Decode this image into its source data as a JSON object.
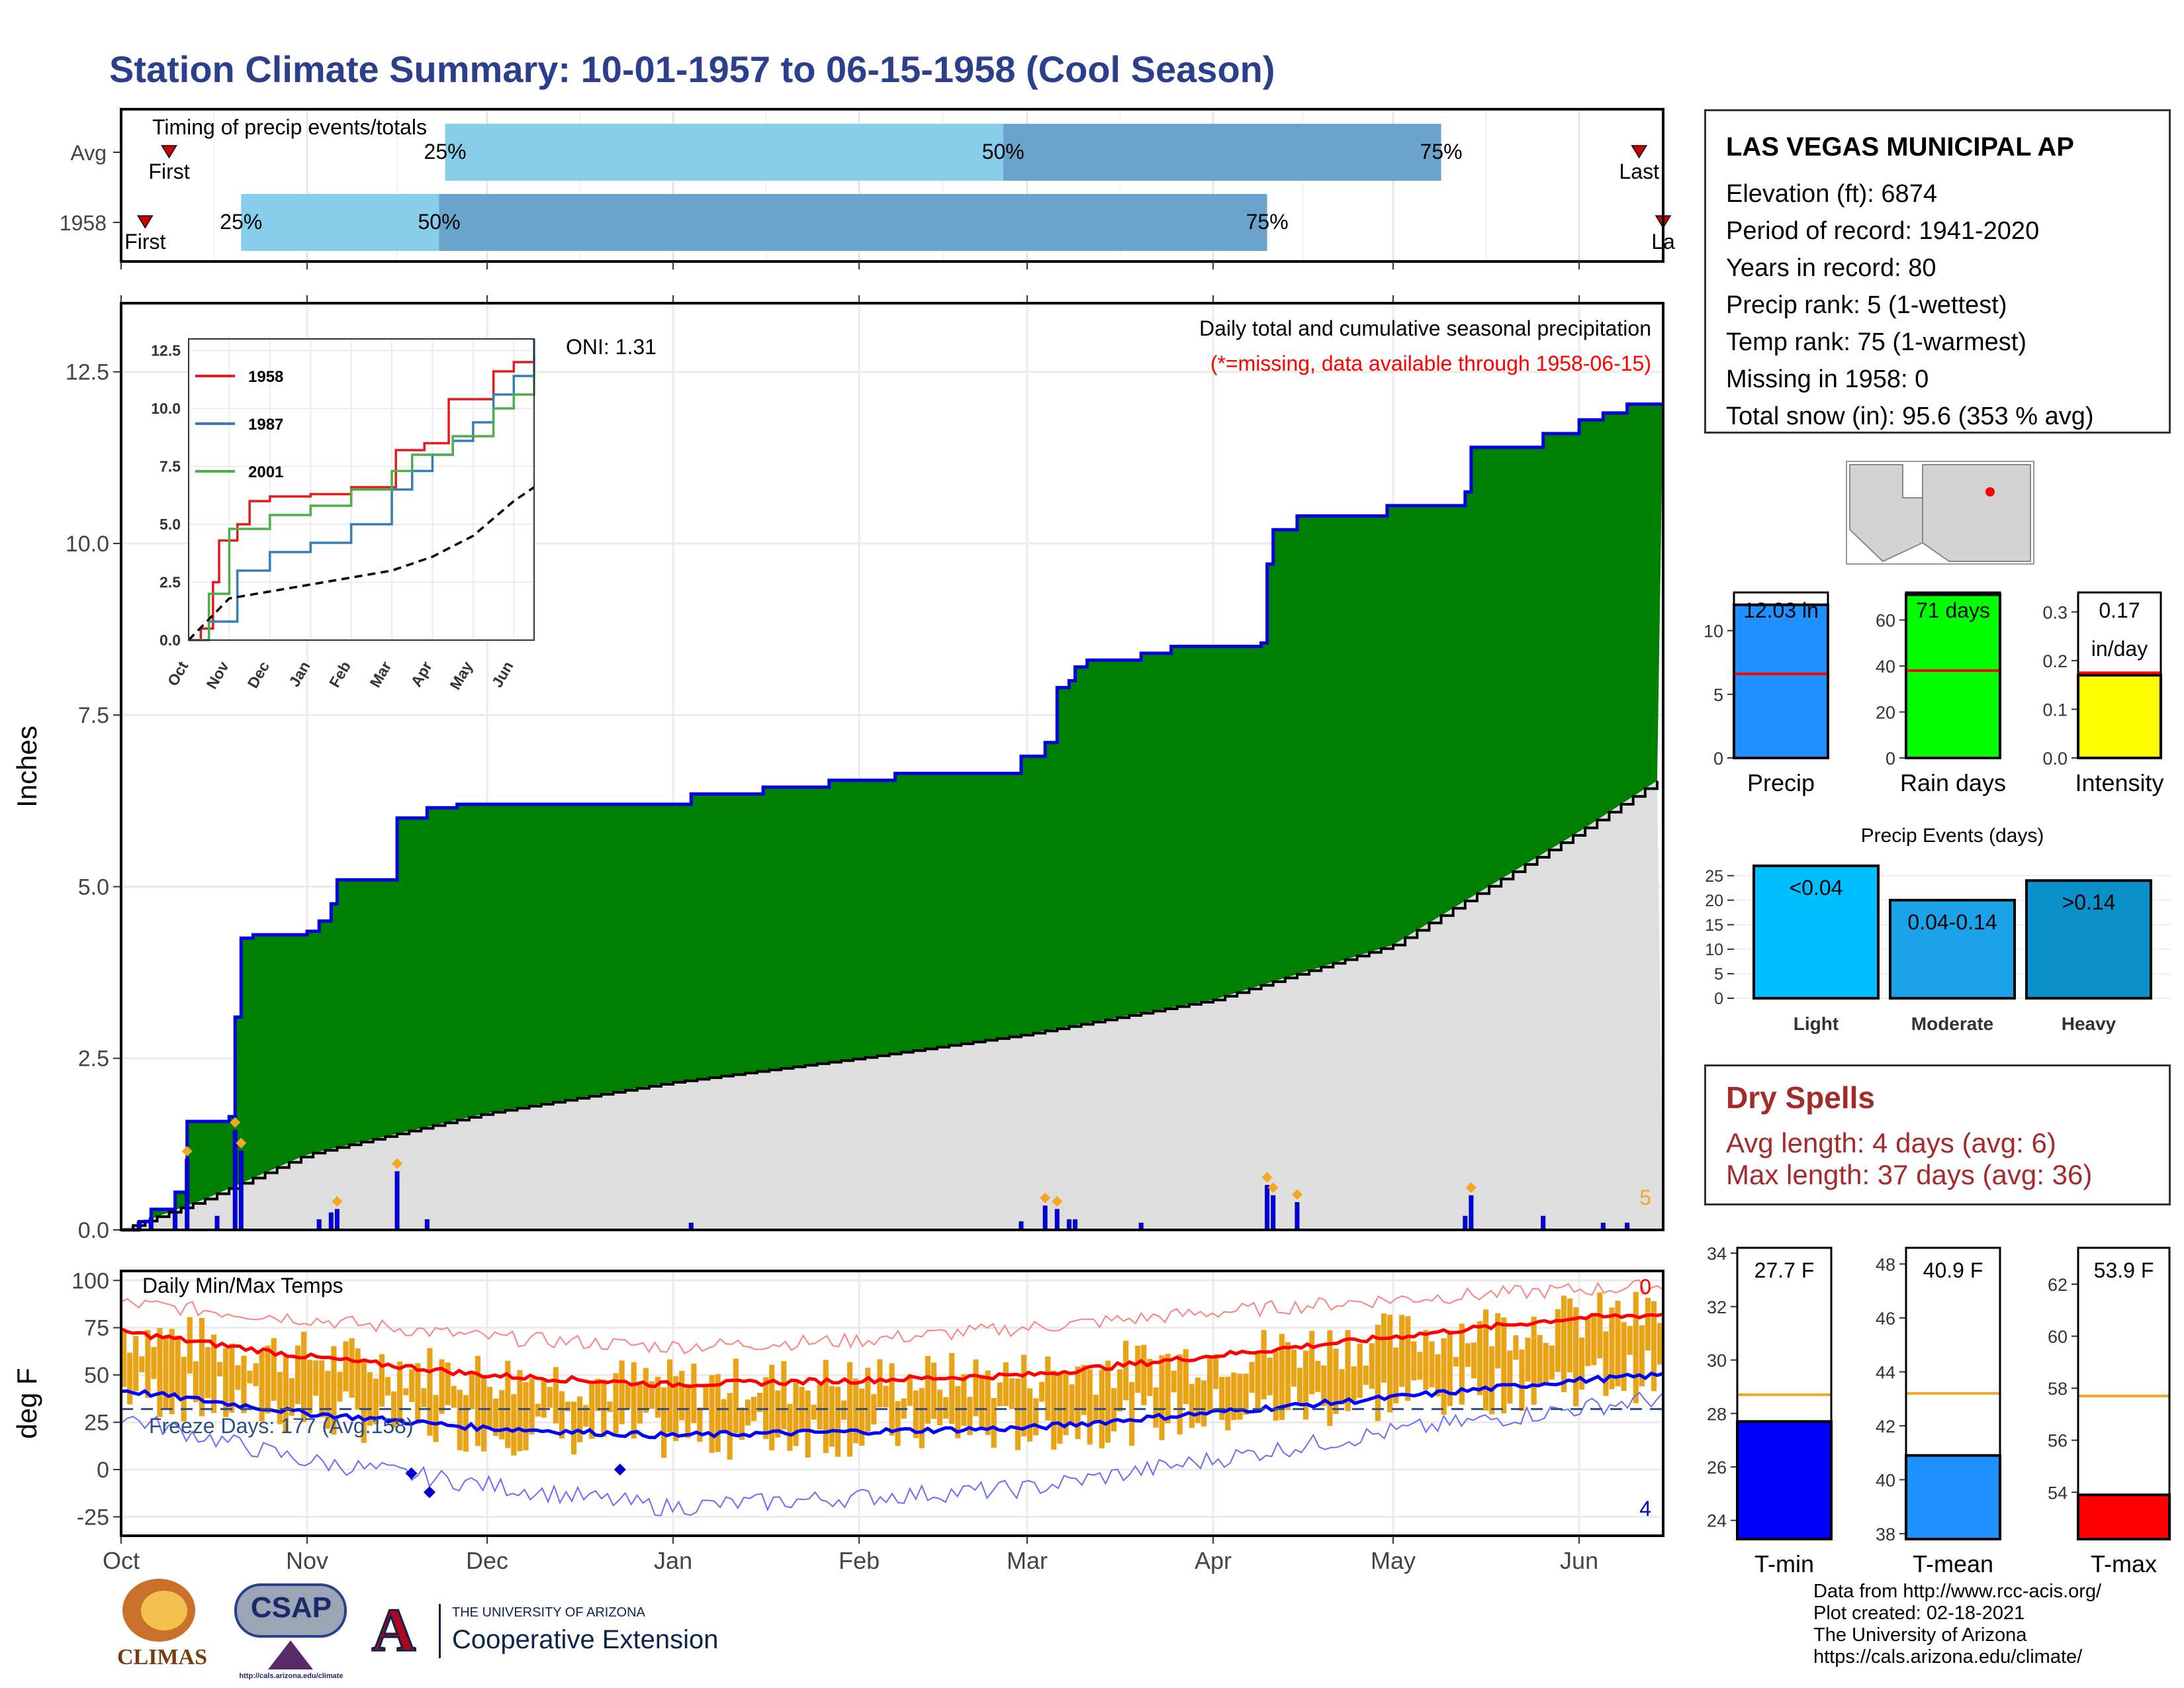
{
  "page_title": "Station Climate Summary: 10-01-1957 to 06-15-1958 (Cool Season)",
  "station_info": {
    "name": "LAS VEGAS MUNICIPAL AP",
    "lines": [
      "Elevation (ft): 6874",
      "Period of record: 1941-2020",
      "Years in record: 80",
      "Precip rank: 5 (1-wettest)",
      "Temp rank: 75 (1-warmest)",
      "Missing in 1958: 0",
      "Total snow (in): 95.6 (353 % avg)"
    ]
  },
  "dry_spells": {
    "title": "Dry Spells",
    "avg_length": "Avg length: 4 days (avg: 6)",
    "max_length": "Max length: 37 days (avg: 36)"
  },
  "credits": [
    "Data from http://www.rcc-acis.org/",
    "Plot created: 02-18-2021",
    "The University of Arizona",
    "https://cals.arizona.edu/climate/"
  ],
  "logos": {
    "climas": "CLIMAS",
    "csap": "CSAP",
    "csap_url": "http://cals.arizona.edu/climate",
    "ua_line1": "THE UNIVERSITY OF ARIZONA",
    "ua_line2": "Cooperative Extension"
  },
  "colors": {
    "title_blue": "#2b3f8c",
    "green": "#008000",
    "grey_area": "#dedede",
    "blue_line": "#0000e0",
    "light_blue": "#87ceeb",
    "mid_blue": "#6aa3cc",
    "red": "#ff0000",
    "orange": "#f5a623",
    "dry_red": "#a52a2a"
  },
  "chart_data": [
    {
      "type": "bar",
      "id": "timing",
      "title": "Timing of precip events/totals",
      "rows": [
        {
          "label": "Avg",
          "first": "10-09",
          "p25": "11-24",
          "p50": "02-25",
          "p75": "05-09",
          "last": "06-11",
          "first_label": "First",
          "last_label": "Last",
          "p25_label": "25%",
          "p50_label": "50%",
          "p75_label": "75%"
        },
        {
          "label": "1958",
          "first": "10-05",
          "p25": "10-21",
          "p50": "11-23",
          "p75": "04-10",
          "last": "06-15",
          "first_label": "First",
          "last_label": "La",
          "p25_label": "25%",
          "p50_label": "50%",
          "p75_label": "75%"
        }
      ]
    },
    {
      "type": "area",
      "id": "precip",
      "title": "Daily total and cumulative seasonal precipitation",
      "subtitle": "(*=missing, data available through 1958-06-15)",
      "annotation": "ONI: 1.31",
      "corner_count": "5",
      "ylabel": "Inches",
      "ylim": [
        0,
        13.5
      ],
      "yticks": [
        0,
        2.5,
        5,
        7.5,
        10,
        12.5
      ],
      "ytick_labels": [
        "0.0",
        "2.5",
        "5.0",
        "7.5",
        "10.0",
        "12.5"
      ],
      "xlim": [
        "1957-10-01",
        "1958-06-15"
      ],
      "cumulative_1958": [
        {
          "date": "1957-10-01",
          "value": 0.0
        },
        {
          "date": "1957-10-04",
          "value": 0.12
        },
        {
          "date": "1957-10-06",
          "value": 0.3
        },
        {
          "date": "1957-10-10",
          "value": 0.55
        },
        {
          "date": "1957-10-12",
          "value": 1.58
        },
        {
          "date": "1957-10-19",
          "value": 1.65
        },
        {
          "date": "1957-10-20",
          "value": 3.1
        },
        {
          "date": "1957-10-21",
          "value": 4.25
        },
        {
          "date": "1957-10-23",
          "value": 4.3
        },
        {
          "date": "1957-11-01",
          "value": 4.35
        },
        {
          "date": "1957-11-03",
          "value": 4.5
        },
        {
          "date": "1957-11-05",
          "value": 4.75
        },
        {
          "date": "1957-11-06",
          "value": 5.1
        },
        {
          "date": "1957-11-16",
          "value": 6.0
        },
        {
          "date": "1957-11-21",
          "value": 6.15
        },
        {
          "date": "1957-11-26",
          "value": 6.2
        },
        {
          "date": "1958-01-01",
          "value": 6.2
        },
        {
          "date": "1958-01-04",
          "value": 6.35
        },
        {
          "date": "1958-01-16",
          "value": 6.45
        },
        {
          "date": "1958-01-27",
          "value": 6.55
        },
        {
          "date": "1958-02-07",
          "value": 6.65
        },
        {
          "date": "1958-02-28",
          "value": 6.9
        },
        {
          "date": "1958-03-04",
          "value": 7.1
        },
        {
          "date": "1958-03-06",
          "value": 7.9
        },
        {
          "date": "1958-03-08",
          "value": 8.0
        },
        {
          "date": "1958-03-09",
          "value": 8.2
        },
        {
          "date": "1958-03-11",
          "value": 8.3
        },
        {
          "date": "1958-03-20",
          "value": 8.4
        },
        {
          "date": "1958-03-25",
          "value": 8.5
        },
        {
          "date": "1958-04-09",
          "value": 8.55
        },
        {
          "date": "1958-04-10",
          "value": 9.7
        },
        {
          "date": "1958-04-11",
          "value": 10.2
        },
        {
          "date": "1958-04-15",
          "value": 10.4
        },
        {
          "date": "1958-04-30",
          "value": 10.55
        },
        {
          "date": "1958-05-13",
          "value": 10.75
        },
        {
          "date": "1958-05-14",
          "value": 11.4
        },
        {
          "date": "1958-05-26",
          "value": 11.6
        },
        {
          "date": "1958-06-01",
          "value": 11.8
        },
        {
          "date": "1958-06-05",
          "value": 11.9
        },
        {
          "date": "1958-06-09",
          "value": 12.03
        },
        {
          "date": "1958-06-15",
          "value": 12.03
        }
      ],
      "cumulative_avg": [
        {
          "date": "1957-10-01",
          "value": 0.0
        },
        {
          "date": "1957-10-15",
          "value": 0.45
        },
        {
          "date": "1957-11-01",
          "value": 1.1
        },
        {
          "date": "1957-12-01",
          "value": 1.7
        },
        {
          "date": "1958-01-01",
          "value": 2.15
        },
        {
          "date": "1958-02-01",
          "value": 2.5
        },
        {
          "date": "1958-03-01",
          "value": 2.85
        },
        {
          "date": "1958-04-01",
          "value": 3.35
        },
        {
          "date": "1958-05-01",
          "value": 4.15
        },
        {
          "date": "1958-05-15",
          "value": 4.9
        },
        {
          "date": "1958-06-01",
          "value": 5.8
        },
        {
          "date": "1958-06-15",
          "value": 6.6
        }
      ],
      "daily_bars": [
        {
          "date": "1957-10-04",
          "value": 0.12
        },
        {
          "date": "1957-10-06",
          "value": 0.18
        },
        {
          "date": "1957-10-10",
          "value": 0.25
        },
        {
          "date": "1957-10-12",
          "value": 1.03
        },
        {
          "date": "1957-10-17",
          "value": 0.2
        },
        {
          "date": "1957-10-20",
          "value": 1.45
        },
        {
          "date": "1957-10-21",
          "value": 1.15
        },
        {
          "date": "1957-11-03",
          "value": 0.15
        },
        {
          "date": "1957-11-05",
          "value": 0.25
        },
        {
          "date": "1957-11-06",
          "value": 0.3
        },
        {
          "date": "1957-11-16",
          "value": 0.85
        },
        {
          "date": "1957-11-21",
          "value": 0.15
        },
        {
          "date": "1958-01-04",
          "value": 0.1
        },
        {
          "date": "1958-02-28",
          "value": 0.12
        },
        {
          "date": "1958-03-04",
          "value": 0.35
        },
        {
          "date": "1958-03-06",
          "value": 0.3
        },
        {
          "date": "1958-03-08",
          "value": 0.15
        },
        {
          "date": "1958-03-09",
          "value": 0.15
        },
        {
          "date": "1958-03-20",
          "value": 0.1
        },
        {
          "date": "1958-04-10",
          "value": 0.65
        },
        {
          "date": "1958-04-11",
          "value": 0.5
        },
        {
          "date": "1958-04-15",
          "value": 0.4
        },
        {
          "date": "1958-05-13",
          "value": 0.2
        },
        {
          "date": "1958-05-14",
          "value": 0.5
        },
        {
          "date": "1958-05-26",
          "value": 0.2
        },
        {
          "date": "1958-06-05",
          "value": 0.1
        },
        {
          "date": "1958-06-09",
          "value": 0.1
        }
      ],
      "month_ticks": [
        "Oct",
        "Nov",
        "Dec",
        "Jan",
        "Feb",
        "Mar",
        "Apr",
        "May",
        "Jun"
      ],
      "inset": {
        "type": "line",
        "ylim": [
          0,
          13
        ],
        "yticks": [
          0,
          2.5,
          5,
          7.5,
          10,
          12.5
        ],
        "ytick_labels": [
          "0.0",
          "2.5",
          "5.0",
          "7.5",
          "10.0",
          "12.5"
        ],
        "xtick_labels": [
          "Oct",
          "Nov",
          "Dec",
          "Jan",
          "Feb",
          "Mar",
          "Apr",
          "May",
          "Jun"
        ],
        "series": [
          {
            "name": "1958",
            "color": "#e41a1c",
            "points": [
              [
                0,
                0
              ],
              [
                0.3,
                0.5
              ],
              [
                0.6,
                2.5
              ],
              [
                0.75,
                4.3
              ],
              [
                1.2,
                5.0
              ],
              [
                1.5,
                6.0
              ],
              [
                2.0,
                6.2
              ],
              [
                3.0,
                6.3
              ],
              [
                4.0,
                6.6
              ],
              [
                5.1,
                8.2
              ],
              [
                5.8,
                8.5
              ],
              [
                6.4,
                10.4
              ],
              [
                7.5,
                11.6
              ],
              [
                8.0,
                12.0
              ],
              [
                8.5,
                12.2
              ]
            ]
          },
          {
            "name": "1987",
            "color": "#377eb8",
            "points": [
              [
                0,
                0
              ],
              [
                0.5,
                0.8
              ],
              [
                1.2,
                3.0
              ],
              [
                2.0,
                3.8
              ],
              [
                3.0,
                4.2
              ],
              [
                4.0,
                5.0
              ],
              [
                5.0,
                6.5
              ],
              [
                5.5,
                7.3
              ],
              [
                6.0,
                8.0
              ],
              [
                6.5,
                8.6
              ],
              [
                7.0,
                9.4
              ],
              [
                7.5,
                10.6
              ],
              [
                8.0,
                11.4
              ],
              [
                8.5,
                13.0
              ]
            ]
          },
          {
            "name": "2001",
            "color": "#4daf4a",
            "points": [
              [
                0,
                0
              ],
              [
                0.5,
                2.0
              ],
              [
                1.0,
                4.8
              ],
              [
                2.0,
                5.4
              ],
              [
                3.0,
                5.8
              ],
              [
                4.0,
                6.5
              ],
              [
                5.0,
                7.3
              ],
              [
                5.5,
                8.0
              ],
              [
                6.5,
                8.8
              ],
              [
                7.5,
                10.0
              ],
              [
                8.0,
                10.6
              ],
              [
                8.5,
                11.5
              ]
            ]
          },
          {
            "name": "avg",
            "color": "#000000",
            "dashed": true,
            "points": [
              [
                0,
                0
              ],
              [
                1,
                1.8
              ],
              [
                2,
                2.1
              ],
              [
                3,
                2.4
              ],
              [
                4,
                2.7
              ],
              [
                5,
                3.0
              ],
              [
                6,
                3.6
              ],
              [
                7,
                4.5
              ],
              [
                8,
                6.0
              ],
              [
                8.5,
                6.6
              ]
            ]
          }
        ]
      }
    },
    {
      "type": "line",
      "id": "temps",
      "title": "Daily Min/Max Temps",
      "freeze_label": "Freeze Days: 177 (Avg.158)",
      "corner_top": "0",
      "corner_bottom": "4",
      "ylabel": "deg F",
      "ylim": [
        -35,
        105
      ],
      "yticks": [
        -25,
        0,
        25,
        50,
        75,
        100
      ],
      "ytick_labels": [
        "-25",
        "0",
        "25",
        "50",
        "75",
        "100"
      ],
      "xtick_labels": [
        "Oct",
        "Nov",
        "Dec",
        "Jan",
        "Feb",
        "Mar",
        "Apr",
        "May",
        "Jun"
      ],
      "normal_max": [
        [
          0,
          73
        ],
        [
          1,
          60
        ],
        [
          2,
          50
        ],
        [
          3,
          45
        ],
        [
          4,
          47
        ],
        [
          5,
          50
        ],
        [
          6,
          60
        ],
        [
          7,
          70
        ],
        [
          8,
          80
        ],
        [
          8.5,
          82
        ]
      ],
      "normal_min": [
        [
          0,
          42
        ],
        [
          1,
          30
        ],
        [
          2,
          22
        ],
        [
          3,
          18
        ],
        [
          4,
          20
        ],
        [
          5,
          22
        ],
        [
          6,
          30
        ],
        [
          7,
          38
        ],
        [
          8,
          47
        ],
        [
          8.5,
          50
        ]
      ],
      "record_max": [
        [
          0,
          88
        ],
        [
          1,
          80
        ],
        [
          2,
          70
        ],
        [
          3,
          65
        ],
        [
          4,
          68
        ],
        [
          5,
          75
        ],
        [
          6,
          83
        ],
        [
          7,
          90
        ],
        [
          8,
          95
        ],
        [
          8.5,
          97
        ]
      ],
      "record_min": [
        [
          0,
          28
        ],
        [
          1,
          5
        ],
        [
          2,
          -8
        ],
        [
          3,
          -20
        ],
        [
          4,
          -15
        ],
        [
          5,
          -10
        ],
        [
          6,
          5
        ],
        [
          7,
          20
        ],
        [
          8,
          32
        ],
        [
          8.5,
          38
        ]
      ],
      "freeze_line": 32
    },
    {
      "type": "bar",
      "id": "precip_summary",
      "categories": [
        "Precip",
        "Rain days",
        "Intensity"
      ],
      "values": [
        12.03,
        71,
        0.17
      ],
      "value_labels": [
        "12.03 in",
        "71 days",
        "0.17\nin/day"
      ],
      "averages": [
        6.6,
        38,
        0.175
      ],
      "ylims": [
        [
          0,
          13
        ],
        [
          0,
          72
        ],
        [
          0,
          0.34
        ]
      ],
      "yticks": [
        [
          0,
          5,
          10
        ],
        [
          0,
          20,
          40,
          60
        ],
        [
          0.0,
          0.1,
          0.2,
          0.3
        ]
      ],
      "ytick_labels": [
        [
          "0",
          "5",
          "10"
        ],
        [
          "0",
          "20",
          "40",
          "60"
        ],
        [
          "0.0",
          "0.1",
          "0.2",
          "0.3"
        ]
      ],
      "fills": [
        "#1e90ff",
        "#00ff00",
        "#ffff00"
      ]
    },
    {
      "type": "bar",
      "id": "precip_events",
      "title": "Precip Events (days)",
      "categories": [
        "Light",
        "Moderate",
        "Heavy"
      ],
      "values": [
        27,
        20,
        24
      ],
      "value_labels": [
        "<0.04",
        "0.04-0.14",
        ">0.14"
      ],
      "ylim": [
        0,
        27
      ],
      "yticks": [
        0,
        5,
        10,
        15,
        20,
        25
      ],
      "ytick_labels": [
        "0",
        "5",
        "10",
        "15",
        "20",
        "25"
      ],
      "fills": [
        "#00bfff",
        "#1aa3e8",
        "#0a90c8"
      ]
    },
    {
      "type": "bar",
      "id": "temp_summary",
      "categories": [
        "T-min",
        "T-mean",
        "T-max"
      ],
      "values": [
        27.7,
        40.9,
        53.9
      ],
      "value_labels": [
        "27.7 F",
        "40.9 F",
        "53.9 F"
      ],
      "averages": [
        28.7,
        43.2,
        57.7
      ],
      "ylims": [
        [
          23.3,
          34.2
        ],
        [
          37.8,
          48.6
        ],
        [
          52.2,
          63.4
        ]
      ],
      "yticks": [
        [
          24,
          26,
          28,
          30,
          32,
          34
        ],
        [
          38,
          40,
          42,
          44,
          46,
          48
        ],
        [
          54,
          56,
          58,
          60,
          62
        ]
      ],
      "ytick_labels": [
        [
          "24",
          "26",
          "28",
          "30",
          "32",
          "34"
        ],
        [
          "38",
          "40",
          "42",
          "44",
          "46",
          "48"
        ],
        [
          "54",
          "56",
          "58",
          "60",
          "62"
        ]
      ],
      "fills": [
        "#0000ff",
        "#1e90ff",
        "#ff0000"
      ]
    }
  ]
}
